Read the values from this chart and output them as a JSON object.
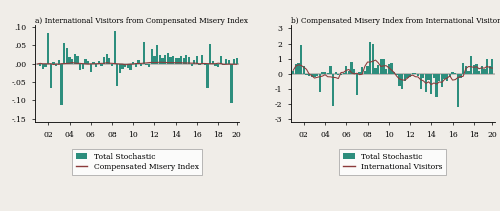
{
  "title_a": "a) International Visitors from Compensated Misery Index",
  "title_b": "b) Compensated Misery Index from International Visitors",
  "legend_a_bar": "Total Stochastic",
  "legend_a_line": "Compensated Misery Index",
  "legend_b_bar": "Total Stochastic",
  "legend_b_line": "International Visitors",
  "xticks": [
    "02",
    "04",
    "06",
    "08",
    "10",
    "12",
    "14",
    "16",
    "18",
    "20"
  ],
  "ylim_a": [
    -0.16,
    0.105
  ],
  "ylim_b": [
    -3.2,
    3.2
  ],
  "yticks_a": [
    -0.15,
    -0.1,
    -0.05,
    0.0,
    0.05,
    0.1
  ],
  "yticklabels_a": [
    "-.15",
    "-.10",
    "-.05",
    ".00",
    ".05",
    ".10"
  ],
  "yticks_b": [
    -3,
    -2,
    -1,
    0,
    1,
    2,
    3
  ],
  "yticklabels_b": [
    "-3",
    "-2",
    "-1",
    "0",
    "1",
    "2",
    "3"
  ],
  "bar_color": "#2D8E7D",
  "line_color": "#8B3A3A",
  "bg_color": "#F0EDE8",
  "n_points": 76,
  "tick_positions": [
    4,
    12,
    20,
    28,
    36,
    44,
    52,
    60,
    68,
    75
  ]
}
